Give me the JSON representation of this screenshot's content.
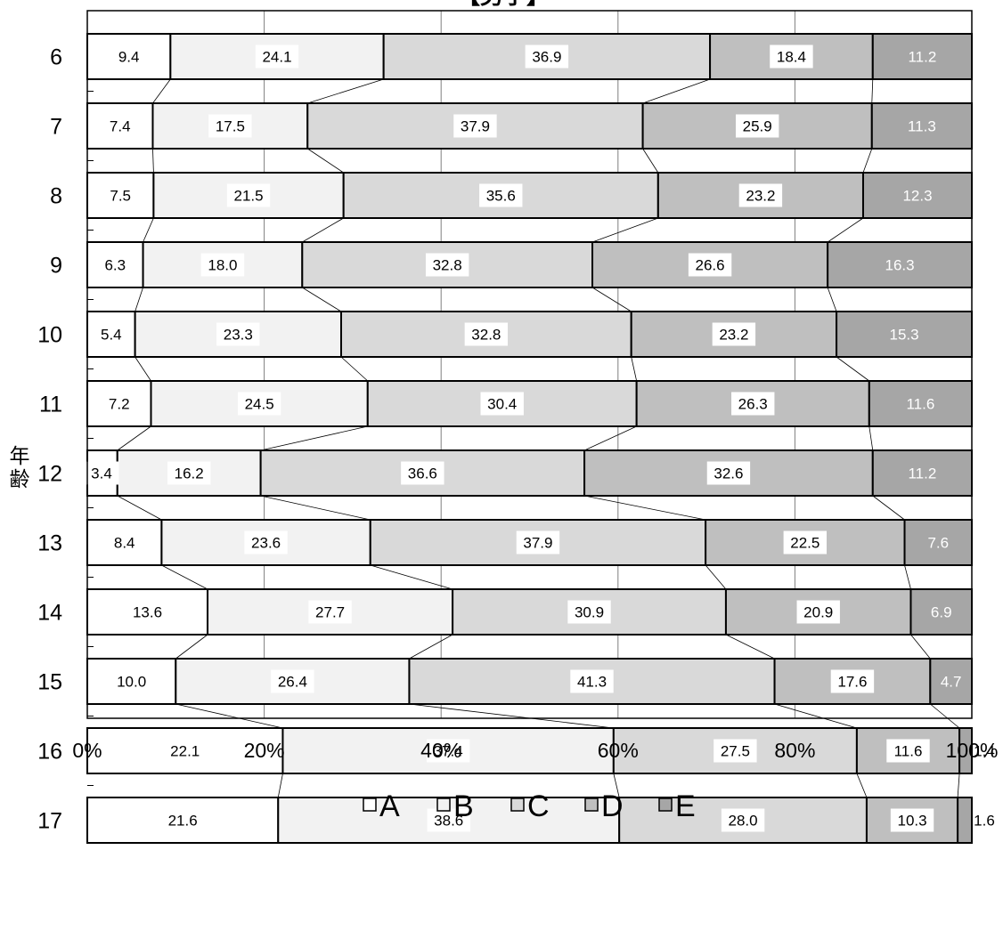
{
  "chart_data": {
    "type": "bar",
    "orientation": "horizontal",
    "stacked": "percent",
    "title": "【男子】",
    "ylabel": "年齢",
    "categories": [
      "6",
      "7",
      "8",
      "9",
      "10",
      "11",
      "12",
      "13",
      "14",
      "15",
      "16",
      "17"
    ],
    "series": [
      {
        "name": "A",
        "color": "#ffffff",
        "values": [
          9.4,
          7.4,
          7.5,
          6.3,
          5.4,
          7.2,
          3.4,
          8.4,
          13.6,
          10.0,
          22.1,
          21.6
        ],
        "labels": [
          "9.4",
          "7.4",
          "7.5",
          "6.3",
          "5.4",
          "7.2",
          "3.4",
          "8.4",
          "13.6",
          "10.0",
          "22.1",
          "21.6"
        ]
      },
      {
        "name": "B",
        "color": "#f2f2f2",
        "values": [
          24.1,
          17.5,
          21.5,
          18.0,
          23.3,
          24.5,
          16.2,
          23.6,
          27.7,
          26.4,
          37.4,
          38.6
        ],
        "labels": [
          "24.1",
          "17.5",
          "21.5",
          "18.0",
          "23.3",
          "24.5",
          "16.2",
          "23.6",
          "27.7",
          "26.4",
          "37.4",
          "38.6"
        ]
      },
      {
        "name": "C",
        "color": "#d9d9d9",
        "values": [
          36.9,
          37.9,
          35.6,
          32.8,
          32.8,
          30.4,
          36.6,
          37.9,
          30.9,
          41.3,
          27.5,
          28.0
        ],
        "labels": [
          "36.9",
          "37.9",
          "35.6",
          "32.8",
          "32.8",
          "30.4",
          "36.6",
          "37.9",
          "30.9",
          "41.3",
          "27.5",
          "28.0"
        ]
      },
      {
        "name": "D",
        "color": "#bfbfbf",
        "values": [
          18.4,
          25.9,
          23.2,
          26.6,
          23.2,
          26.3,
          32.6,
          22.5,
          20.9,
          17.6,
          11.6,
          10.3
        ],
        "labels": [
          "18.4",
          "25.9",
          "23.2",
          "26.6",
          "23.2",
          "26.3",
          "32.6",
          "22.5",
          "20.9",
          "17.6",
          "11.6",
          "10.3"
        ]
      },
      {
        "name": "E",
        "color": "#a6a6a6",
        "values": [
          11.2,
          11.3,
          12.3,
          16.3,
          15.3,
          11.6,
          11.2,
          7.6,
          6.9,
          4.7,
          1.4,
          1.6
        ],
        "labels": [
          "11.2",
          "11.3",
          "12.3",
          "16.3",
          "15.3",
          "11.6",
          "11.2",
          "7.6",
          "6.9",
          "4.7",
          "1.4",
          "1.6"
        ]
      }
    ],
    "xticks": [
      "0%",
      "20%",
      "40%",
      "60%",
      "80%",
      "100%"
    ],
    "xlim": [
      0,
      100
    ],
    "grid": true,
    "legend_position": "bottom",
    "series_lines": true
  }
}
